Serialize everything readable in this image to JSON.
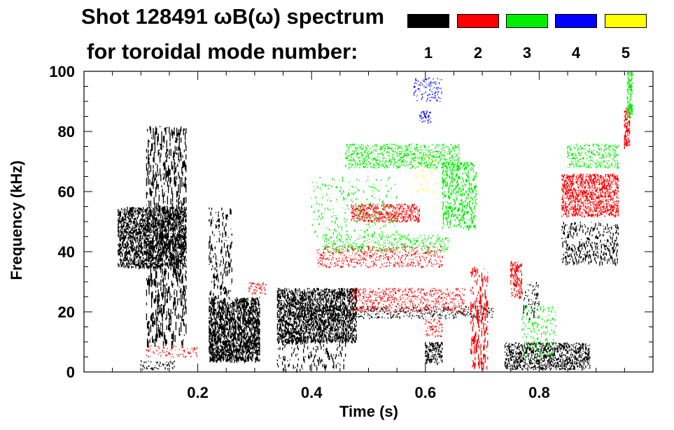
{
  "chart_data": {
    "type": "heatmap",
    "title": {
      "line1": "Shot 128491 ωB(ω) spectrum",
      "line2": "for toroidal mode number:"
    },
    "xlabel": "Time (s)",
    "ylabel": "Frequency (kHz)",
    "xlim": [
      0.0,
      1.0
    ],
    "ylim": [
      0,
      100
    ],
    "xticks": [
      0.2,
      0.4,
      0.6,
      0.8
    ],
    "xtick_labels": [
      "0.2",
      "0.4",
      "0.6",
      "0.8"
    ],
    "yticks": [
      0,
      20,
      40,
      60,
      80,
      100
    ],
    "ytick_labels": [
      "0",
      "20",
      "40",
      "60",
      "80",
      "100"
    ],
    "legend": [
      {
        "n": "1",
        "color": "#000000"
      },
      {
        "n": "2",
        "color": "#ff0000"
      },
      {
        "n": "3",
        "color": "#00ee00"
      },
      {
        "n": "4",
        "color": "#0000ff"
      },
      {
        "n": "5",
        "color": "#ffff00"
      }
    ],
    "features": [
      {
        "n": 1,
        "t0": 0.06,
        "t1": 0.18,
        "f0": 35,
        "f1": 55,
        "seed": 11,
        "density": 0.9,
        "len": 4
      },
      {
        "n": 1,
        "t0": 0.11,
        "t1": 0.18,
        "f0": 10,
        "f1": 82,
        "seed": 12,
        "density": 0.25,
        "len": 12
      },
      {
        "n": 1,
        "t0": 0.1,
        "t1": 0.16,
        "f0": 1,
        "f1": 4,
        "seed": 13,
        "density": 0.5,
        "len": 3
      },
      {
        "n": 1,
        "t0": 0.22,
        "t1": 0.31,
        "f0": 4,
        "f1": 25,
        "seed": 14,
        "density": 0.95,
        "len": 5
      },
      {
        "n": 1,
        "t0": 0.22,
        "t1": 0.26,
        "f0": 25,
        "f1": 55,
        "seed": 15,
        "density": 0.2,
        "len": 8
      },
      {
        "n": 1,
        "t0": 0.34,
        "t1": 0.48,
        "f0": 10,
        "f1": 28,
        "seed": 16,
        "density": 0.95,
        "len": 4
      },
      {
        "n": 1,
        "t0": 0.34,
        "t1": 0.46,
        "f0": 1,
        "f1": 12,
        "seed": 17,
        "density": 0.2,
        "len": 6
      },
      {
        "n": 1,
        "t0": 0.4,
        "t1": 0.72,
        "f0": 18,
        "f1": 22,
        "seed": 18,
        "density": 0.5,
        "len": 2
      },
      {
        "n": 1,
        "t0": 0.6,
        "t1": 0.63,
        "f0": 3,
        "f1": 10,
        "seed": 19,
        "density": 0.9,
        "len": 3
      },
      {
        "n": 1,
        "t0": 0.74,
        "t1": 0.89,
        "f0": 1,
        "f1": 10,
        "seed": 20,
        "density": 0.85,
        "len": 3
      },
      {
        "n": 1,
        "t0": 0.84,
        "t1": 0.94,
        "f0": 36,
        "f1": 50,
        "seed": 21,
        "density": 0.35,
        "len": 5
      },
      {
        "n": 1,
        "t0": 0.77,
        "t1": 0.8,
        "f0": 18,
        "f1": 30,
        "seed": 22,
        "density": 0.3,
        "len": 4
      },
      {
        "n": 2,
        "t0": 0.47,
        "t1": 0.59,
        "f0": 50,
        "f1": 56,
        "seed": 31,
        "density": 0.95,
        "len": 2
      },
      {
        "n": 2,
        "t0": 0.41,
        "t1": 0.63,
        "f0": 35,
        "f1": 42,
        "seed": 32,
        "density": 0.45,
        "len": 2
      },
      {
        "n": 2,
        "t0": 0.47,
        "t1": 0.67,
        "f0": 20,
        "f1": 28,
        "seed": 33,
        "density": 0.55,
        "len": 2
      },
      {
        "n": 2,
        "t0": 0.84,
        "t1": 0.94,
        "f0": 52,
        "f1": 66,
        "seed": 34,
        "density": 0.9,
        "len": 3
      },
      {
        "n": 2,
        "t0": 0.95,
        "t1": 0.96,
        "f0": 75,
        "f1": 88,
        "seed": 35,
        "density": 0.9,
        "len": 4
      },
      {
        "n": 2,
        "t0": 0.68,
        "t1": 0.71,
        "f0": 2,
        "f1": 35,
        "seed": 36,
        "density": 0.3,
        "len": 10
      },
      {
        "n": 2,
        "t0": 0.75,
        "t1": 0.77,
        "f0": 25,
        "f1": 37,
        "seed": 37,
        "density": 0.6,
        "len": 5
      },
      {
        "n": 2,
        "t0": 0.29,
        "t1": 0.32,
        "f0": 26,
        "f1": 30,
        "seed": 38,
        "density": 0.6,
        "len": 2
      },
      {
        "n": 2,
        "t0": 0.11,
        "t1": 0.2,
        "f0": 5,
        "f1": 9,
        "seed": 39,
        "density": 0.4,
        "len": 2
      },
      {
        "n": 2,
        "t0": 0.6,
        "t1": 0.63,
        "f0": 12,
        "f1": 18,
        "seed": 40,
        "density": 0.6,
        "len": 2
      },
      {
        "n": 3,
        "t0": 0.46,
        "t1": 0.66,
        "f0": 68,
        "f1": 76,
        "seed": 51,
        "density": 0.7,
        "len": 2
      },
      {
        "n": 3,
        "t0": 0.63,
        "t1": 0.69,
        "f0": 48,
        "f1": 70,
        "seed": 52,
        "density": 0.5,
        "len": 4
      },
      {
        "n": 3,
        "t0": 0.42,
        "t1": 0.64,
        "f0": 40,
        "f1": 46,
        "seed": 53,
        "density": 0.45,
        "len": 2
      },
      {
        "n": 3,
        "t0": 0.85,
        "t1": 0.94,
        "f0": 68,
        "f1": 76,
        "seed": 54,
        "density": 0.6,
        "len": 2
      },
      {
        "n": 3,
        "t0": 0.955,
        "t1": 0.965,
        "f0": 85,
        "f1": 100,
        "seed": 55,
        "density": 0.9,
        "len": 4
      },
      {
        "n": 3,
        "t0": 0.4,
        "t1": 0.55,
        "f0": 45,
        "f1": 65,
        "seed": 56,
        "density": 0.15,
        "len": 3
      },
      {
        "n": 3,
        "t0": 0.77,
        "t1": 0.83,
        "f0": 5,
        "f1": 22,
        "seed": 57,
        "density": 0.25,
        "len": 3
      },
      {
        "n": 4,
        "t0": 0.58,
        "t1": 0.63,
        "f0": 90,
        "f1": 98,
        "seed": 71,
        "density": 0.4,
        "len": 2
      },
      {
        "n": 4,
        "t0": 0.59,
        "t1": 0.61,
        "f0": 83,
        "f1": 87,
        "seed": 72,
        "density": 0.7,
        "len": 2
      },
      {
        "n": 5,
        "t0": 0.58,
        "t1": 0.62,
        "f0": 60,
        "f1": 72,
        "seed": 81,
        "density": 0.15,
        "len": 2
      }
    ]
  }
}
